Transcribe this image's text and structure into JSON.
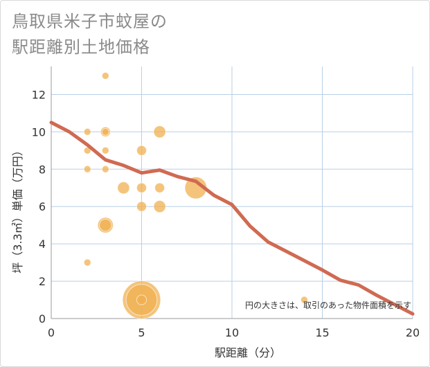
{
  "chart_data": {
    "type": "scatter",
    "title": "鳥取県米子市蚊屋の\n駅距離別土地価格",
    "xlabel": "駅距離（分）",
    "ylabel": "坪（3.3㎡）単価（万円）",
    "xlim": [
      0,
      20
    ],
    "ylim": [
      0,
      13.5
    ],
    "xticks": [
      0,
      5,
      10,
      15,
      20
    ],
    "yticks": [
      0,
      2,
      4,
      6,
      8,
      10,
      12
    ],
    "grid": true,
    "annotation": "円の大きさは、取引のあった物件面積を示す",
    "colors": {
      "bubble": "#f0b050",
      "trend": "#d06a52",
      "grid": "#b7cfe6",
      "axis": "#999999"
    },
    "points": [
      {
        "x": 2,
        "y": 3,
        "size": 1
      },
      {
        "x": 2,
        "y": 8,
        "size": 1
      },
      {
        "x": 2,
        "y": 9,
        "size": 1
      },
      {
        "x": 2,
        "y": 10,
        "size": 1
      },
      {
        "x": 3,
        "y": 13,
        "size": 1
      },
      {
        "x": 3,
        "y": 10,
        "size": 2
      },
      {
        "x": 3,
        "y": 10,
        "size": 1
      },
      {
        "x": 3,
        "y": 9,
        "size": 1
      },
      {
        "x": 3,
        "y": 8,
        "size": 1
      },
      {
        "x": 3,
        "y": 5,
        "size": 5
      },
      {
        "x": 3,
        "y": 5,
        "size": 3
      },
      {
        "x": 4,
        "y": 7,
        "size": 3
      },
      {
        "x": 5,
        "y": 9,
        "size": 2
      },
      {
        "x": 5,
        "y": 7,
        "size": 2
      },
      {
        "x": 5,
        "y": 6,
        "size": 2
      },
      {
        "x": 5,
        "y": 1,
        "size": 30
      },
      {
        "x": 5,
        "y": 1,
        "size": 20
      },
      {
        "x": 5,
        "y": 1,
        "size": 2
      },
      {
        "x": 6,
        "y": 10,
        "size": 3
      },
      {
        "x": 6,
        "y": 7,
        "size": 2
      },
      {
        "x": 6,
        "y": 6,
        "size": 3
      },
      {
        "x": 8,
        "y": 7,
        "size": 10
      },
      {
        "x": 14,
        "y": 1,
        "size": 1
      }
    ],
    "trend": {
      "name": "trend",
      "x": [
        0,
        1,
        2,
        3,
        4,
        5,
        6,
        7,
        8,
        9,
        10,
        11,
        12,
        13,
        14,
        15,
        16,
        17,
        18,
        19,
        20
      ],
      "y": [
        10.5,
        10.0,
        9.3,
        8.5,
        8.2,
        7.8,
        7.95,
        7.6,
        7.35,
        6.6,
        6.1,
        4.95,
        4.1,
        3.6,
        3.1,
        2.6,
        2.05,
        1.8,
        1.25,
        0.75,
        0.25
      ]
    }
  }
}
